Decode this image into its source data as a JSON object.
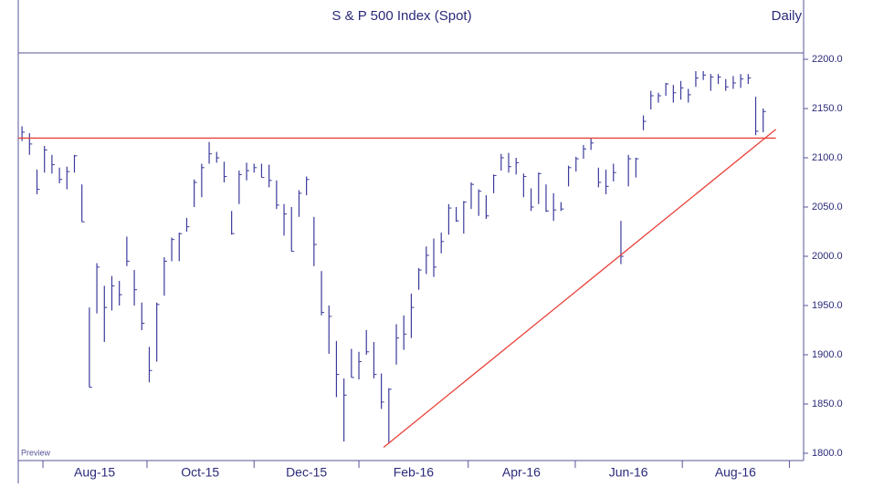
{
  "chart_data": {
    "type": "ohlc",
    "title": "S & P 500 Index  (Spot)",
    "subtitle": "Daily",
    "annotation": "Preview",
    "color": "#3b3b9c",
    "high": [
      2132,
      2125,
      2088,
      2112,
      2103,
      2090,
      2091,
      2103,
      2073,
      1948,
      1993,
      1970,
      1980,
      1975,
      2020,
      1986,
      1953,
      1908,
      1953,
      1999,
      2019,
      2024,
      2039,
      2078,
      2094,
      2116,
      2106,
      2096,
      2046,
      2087,
      2095,
      2094,
      2094,
      2093,
      2077,
      2053,
      2050,
      2067,
      2081,
      2040,
      1985,
      1950,
      1914,
      1876,
      1906,
      1903,
      1925,
      1913,
      1881,
      1866,
      1931,
      1940,
      1962,
      1988,
      2010,
      2018,
      2024,
      2053,
      2050,
      2056,
      2075,
      2068,
      2062,
      2083,
      2104,
      2105,
      2100,
      2084,
      2069,
      2085,
      2073,
      2064,
      2055,
      2092,
      2101,
      2113,
      2120,
      2090,
      2088,
      2094,
      2036,
      2103,
      2100,
      2143,
      2168,
      2166,
      2176,
      2174,
      2178,
      2170,
      2188,
      2188,
      2185,
      2185,
      2180,
      2183,
      2185,
      2185,
      2162,
      2150
    ],
    "low": [
      2117,
      2103,
      2063,
      2085,
      2084,
      2074,
      2068,
      2085,
      2035,
      1867,
      1942,
      1913,
      1945,
      1950,
      1990,
      1950,
      1925,
      1872,
      1893,
      1960,
      1995,
      1995,
      2025,
      2050,
      2060,
      2094,
      2095,
      2075,
      2022,
      2053,
      2077,
      2085,
      2080,
      2070,
      2048,
      2021,
      2005,
      2040,
      2062,
      1990,
      1940,
      1901,
      1857,
      1812,
      1877,
      1875,
      1900,
      1876,
      1845,
      1810,
      1890,
      1905,
      1917,
      1966,
      1982,
      1979,
      2003,
      2022,
      2035,
      2023,
      2048,
      2041,
      2038,
      2064,
      2087,
      2085,
      2083,
      2060,
      2046,
      2053,
      2045,
      2036,
      2046,
      2071,
      2086,
      2099,
      2108,
      2070,
      2063,
      2076,
      1992,
      2071,
      2080,
      2128,
      2149,
      2156,
      2163,
      2156,
      2159,
      2156,
      2172,
      2179,
      2168,
      2175,
      2168,
      2170,
      2171,
      2175,
      2123,
      2126
    ],
    "close": [
      2126,
      2114,
      2068,
      2108,
      2093,
      2078,
      2086,
      2102,
      2035,
      1867,
      1989,
      1948,
      1970,
      1961,
      1995,
      1966,
      1932,
      1884,
      1951,
      1995,
      2017,
      2023,
      2030,
      2075,
      2090,
      2104,
      2100,
      2081,
      2023,
      2083,
      2087,
      2090,
      2080,
      2077,
      2052,
      2043,
      2005,
      2064,
      2078,
      2012,
      1943,
      1939,
      1880,
      1859,
      1877,
      1893,
      1903,
      1880,
      1852,
      1865,
      1917,
      1921,
      1948,
      1986,
      2001,
      1989,
      2015,
      2049,
      2036,
      2055,
      2073,
      2066,
      2041,
      2082,
      2100,
      2091,
      2095,
      2081,
      2050,
      2084,
      2046,
      2047,
      2048,
      2090,
      2099,
      2109,
      2115,
      2075,
      2071,
      2085,
      2000,
      2099,
      2099,
      2137,
      2163,
      2163,
      2175,
      2166,
      2171,
      2164,
      2181,
      2184,
      2182,
      2182,
      2172,
      2176,
      2180,
      2181,
      2127,
      2147
    ],
    "xlim": [
      -0.5,
      104.4
    ],
    "xticks": [
      2.8,
      16.7,
      31,
      45,
      59.6,
      73.9,
      88.2,
      102.5
    ],
    "xtick_labels": [
      {
        "value": 9.7,
        "label": "Aug-15"
      },
      {
        "value": 23.8,
        "label": "Oct-15"
      },
      {
        "value": 38,
        "label": "Dec-15"
      },
      {
        "value": 52.3,
        "label": "Feb-16"
      },
      {
        "value": 66.7,
        "label": "Apr-16"
      },
      {
        "value": 81,
        "label": "Jun-16"
      },
      {
        "value": 95.3,
        "label": "Aug-16"
      }
    ],
    "ylim": [
      1792.6,
      2206.5
    ],
    "yticks": [
      {
        "value": 1800,
        "label": "1800.0"
      },
      {
        "value": 1850,
        "label": "1850.0"
      },
      {
        "value": 1900,
        "label": "1900.0"
      },
      {
        "value": 1950,
        "label": "1950.0"
      },
      {
        "value": 2000,
        "label": "2000.0"
      },
      {
        "value": 2050,
        "label": "2050.0"
      },
      {
        "value": 2100,
        "label": "2100.0"
      },
      {
        "value": 2150,
        "label": "2150.0"
      },
      {
        "value": 2200,
        "label": "2200.0"
      }
    ],
    "lines": [
      {
        "color": "#e8423a",
        "x": [
          -0.5,
          100.7
        ],
        "y": [
          2120,
          2120
        ]
      },
      {
        "color": "#e8423a",
        "x": [
          48.3,
          100.7
        ],
        "y": [
          1806,
          2129
        ]
      }
    ]
  }
}
